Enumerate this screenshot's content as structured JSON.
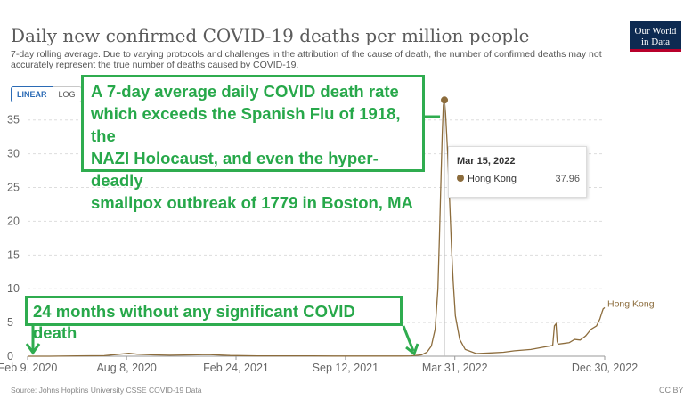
{
  "header": {
    "title": "Daily new confirmed COVID-19 deaths per million people",
    "subtitle": "7-day rolling average. Due to varying protocols and challenges in the attribution of the cause of death, the number of confirmed deaths may not accurately represent the true number of deaths caused by COVID-19.",
    "logo_line1": "Our World",
    "logo_line2": "in Data"
  },
  "controls": {
    "linear_label": "LINEAR",
    "log_label": "LOG"
  },
  "annotations": {
    "box1_lines": [
      "A 7-day average daily COVID death rate",
      "which exceeds the Spanish Flu of 1918, the",
      "NAZI Holocaust, and even the hyper-deadly",
      "smallpox outbreak of 1779 in Boston, MA"
    ],
    "box2": "24 months without any significant COVID death",
    "color": "#2fac4f"
  },
  "tooltip": {
    "date": "Mar 15, 2022",
    "entity": "Hong Kong",
    "value": "37.96"
  },
  "footer": {
    "source": "Source: Johns Hopkins University CSSE COVID-19 Data",
    "license": "CC BY"
  },
  "colors": {
    "series": "#8c6c3c",
    "grid": "#dddddd",
    "tooltip_dot": "#8c6c3c"
  },
  "chart_data": {
    "type": "line",
    "title": "Daily new confirmed COVID-19 deaths per million people",
    "xlabel": "",
    "ylabel": "",
    "ylim": [
      0,
      38
    ],
    "yticks": [
      0,
      5,
      10,
      15,
      20,
      25,
      30,
      35
    ],
    "xtick_labels": [
      "Feb 9, 2020",
      "Aug 8, 2020",
      "Feb 24, 2021",
      "Sep 12, 2021",
      "Mar 31, 2022",
      "Dec 30, 2022"
    ],
    "xtick_days": [
      0,
      181,
      381,
      581,
      781,
      1055
    ],
    "xlim_days": [
      0,
      1055
    ],
    "series": [
      {
        "name": "Hong Kong",
        "x_days": [
          0,
          40,
          90,
          140,
          175,
          185,
          200,
          230,
          260,
          300,
          330,
          370,
          420,
          470,
          520,
          560,
          600,
          640,
          680,
          700,
          720,
          730,
          738,
          745,
          750,
          753,
          756,
          758,
          760,
          762,
          764,
          766,
          768,
          770,
          772,
          775,
          778,
          782,
          790,
          800,
          820,
          850,
          870,
          890,
          920,
          940,
          960,
          963,
          966,
          968,
          970,
          990,
          1000,
          1010,
          1020,
          1030,
          1040,
          1046,
          1050,
          1052,
          1055
        ],
        "values": [
          0,
          0,
          0.05,
          0.08,
          0.35,
          0.45,
          0.3,
          0.2,
          0.15,
          0.2,
          0.25,
          0.1,
          0.05,
          0.05,
          0.05,
          0.03,
          0.03,
          0.03,
          0.03,
          0.05,
          0.2,
          0.6,
          1.5,
          4,
          10,
          18,
          27,
          33,
          37.2,
          37.96,
          36,
          33,
          30,
          26,
          22,
          16,
          11,
          6,
          2.5,
          1,
          0.4,
          0.5,
          0.6,
          0.8,
          1,
          1.3,
          1.6,
          4.5,
          4.8,
          2.2,
          1.8,
          2.0,
          2.5,
          2.4,
          3.0,
          4.0,
          4.5,
          5.5,
          6.5,
          7.0,
          7.2
        ]
      }
    ],
    "highlight": {
      "date": "Mar 15, 2022",
      "x_day": 762,
      "value": 37.96
    },
    "end_label": "Hong Kong"
  }
}
